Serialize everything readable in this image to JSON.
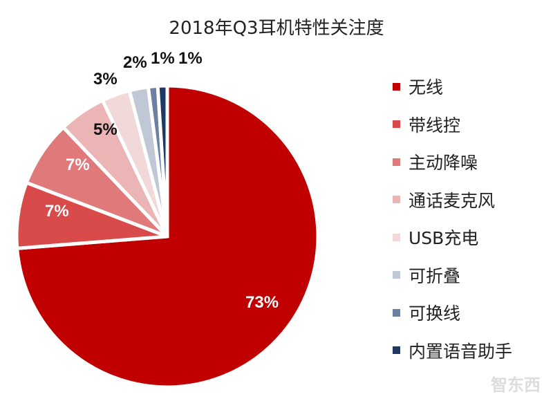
{
  "chart_data": {
    "type": "pie",
    "title": "2018年Q3耳机特性关注度",
    "categories": [
      "无线",
      "带线控",
      "主动降噪",
      "通话麦克风",
      "USB充电",
      "可折叠",
      "可换线",
      "内置语音助手"
    ],
    "values": [
      73,
      7,
      7,
      5,
      3,
      2,
      1,
      1
    ],
    "data_labels": [
      "73%",
      "7%",
      "7%",
      "5%",
      "3%",
      "2%",
      "1%",
      "1%"
    ],
    "colors": [
      "#C00000",
      "#D94B4B",
      "#E07A7A",
      "#EBB5B5",
      "#F2D9D9",
      "#C0C8D6",
      "#6D7FA3",
      "#1F3864"
    ],
    "start_angle": "top",
    "direction": "clockwise",
    "legend_position": "right"
  },
  "watermark": "智东西"
}
